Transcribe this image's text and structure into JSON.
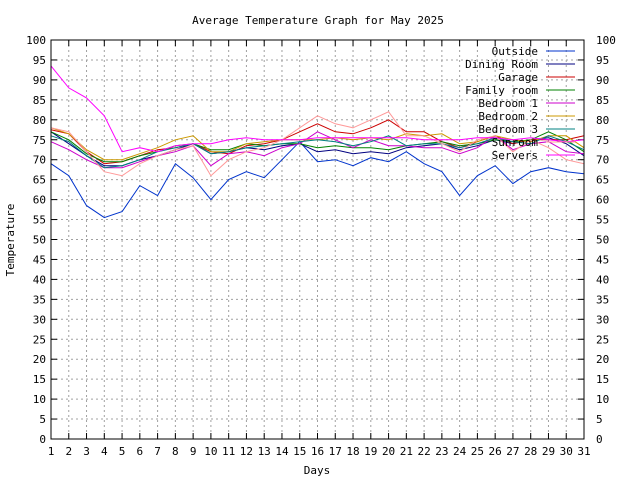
{
  "chart_data": {
    "type": "line",
    "title": "Average Temperature Graph for May 2025",
    "xlabel": "Days",
    "ylabel": "Temperature",
    "x": [
      1,
      2,
      3,
      4,
      5,
      6,
      7,
      8,
      9,
      10,
      11,
      12,
      13,
      14,
      15,
      16,
      17,
      18,
      19,
      20,
      21,
      22,
      23,
      24,
      25,
      26,
      27,
      28,
      29,
      30,
      31
    ],
    "xlim": [
      1,
      31
    ],
    "ylim": [
      0,
      100
    ],
    "y_ticks": [
      0,
      5,
      10,
      15,
      20,
      25,
      30,
      35,
      40,
      45,
      50,
      55,
      60,
      65,
      70,
      75,
      80,
      85,
      90,
      95,
      100
    ],
    "grid": true,
    "legend_position": "top-right",
    "series": [
      {
        "name": "Outside",
        "color": "#0033cc",
        "values": [
          69,
          66,
          58.5,
          55.5,
          57,
          63.5,
          61,
          69,
          65.5,
          60,
          65,
          67,
          65.5,
          70,
          74.5,
          69.5,
          70,
          68.5,
          70.5,
          69.5,
          72,
          69,
          67,
          61,
          66,
          68.5,
          64,
          67,
          68,
          67,
          66.5
        ]
      },
      {
        "name": "Dining Room",
        "color": "#000080",
        "values": [
          77,
          74,
          71,
          68.5,
          68.5,
          70,
          71,
          72.5,
          74,
          71.5,
          72,
          73,
          72.5,
          73.5,
          74,
          72,
          72.5,
          71.5,
          72,
          71.5,
          73,
          73.5,
          74,
          72.5,
          73.5,
          75,
          74,
          75,
          75.5,
          74,
          71
        ]
      },
      {
        "name": "Garage",
        "color": "#cc0000",
        "values": [
          77.5,
          76.5,
          72,
          69,
          69.5,
          71,
          72.5,
          73,
          74,
          72,
          71.5,
          73.5,
          74,
          75,
          77,
          79,
          77,
          76.5,
          78,
          80,
          77,
          77,
          74.5,
          73,
          74.5,
          76,
          74,
          75,
          75,
          75,
          76
        ]
      },
      {
        "name": "Family room",
        "color": "#008000",
        "values": [
          77,
          75,
          71.5,
          69.5,
          69.5,
          71,
          72,
          73.5,
          74,
          72.5,
          72.5,
          74,
          73.5,
          74,
          74,
          73,
          73.5,
          73,
          73,
          72.5,
          73.5,
          74,
          74.5,
          73.5,
          74,
          75,
          74.5,
          75,
          77,
          75,
          72
        ]
      },
      {
        "name": "Bedroom 1",
        "color": "#cc00cc",
        "values": [
          74.5,
          72.5,
          70,
          68,
          68,
          69.5,
          71,
          72,
          73.5,
          68.5,
          71.5,
          72,
          71,
          73,
          74,
          77,
          75,
          73,
          75,
          73.5,
          73.5,
          73,
          73,
          71.5,
          73,
          76,
          72.5,
          74,
          74.5,
          72,
          71.5
        ]
      },
      {
        "name": "Bedroom 2",
        "color": "#cc9900",
        "values": [
          78,
          76.5,
          72.5,
          70,
          70,
          71.5,
          73,
          75,
          76,
          72,
          72,
          74,
          74.5,
          75,
          75,
          75,
          75.5,
          75,
          75.5,
          75,
          76.5,
          76,
          76.5,
          74,
          74.5,
          76,
          75,
          74.5,
          76,
          76,
          73
        ]
      },
      {
        "name": "Bedroom 3",
        "color": "#008080",
        "values": [
          76,
          74.5,
          71,
          68,
          68.5,
          70,
          72,
          73,
          74,
          71.5,
          72,
          73,
          73.5,
          74,
          74.5,
          75,
          74.5,
          73.5,
          74.5,
          76,
          73.5,
          74,
          74,
          73,
          74,
          75.5,
          74.5,
          74,
          76,
          74.5,
          72.5
        ]
      },
      {
        "name": "Sunroom",
        "color": "#ff9999",
        "values": [
          78,
          77,
          72,
          67,
          66,
          69,
          71,
          72.5,
          73.5,
          66,
          70,
          72,
          73,
          75,
          78,
          81,
          79,
          78,
          80,
          82,
          76,
          76,
          74,
          72,
          75,
          76,
          72,
          75,
          73,
          70,
          69
        ]
      },
      {
        "name": "Servers",
        "color": "#ff00ff",
        "values": [
          93.5,
          88,
          85.5,
          81,
          72,
          73,
          72,
          73.5,
          74,
          74,
          75,
          75.5,
          75,
          75,
          75,
          75.5,
          75.5,
          75.5,
          75.5,
          75.5,
          75.5,
          75,
          75,
          75,
          75.5,
          75.5,
          75,
          75.5,
          75,
          74.5,
          75
        ]
      }
    ]
  }
}
